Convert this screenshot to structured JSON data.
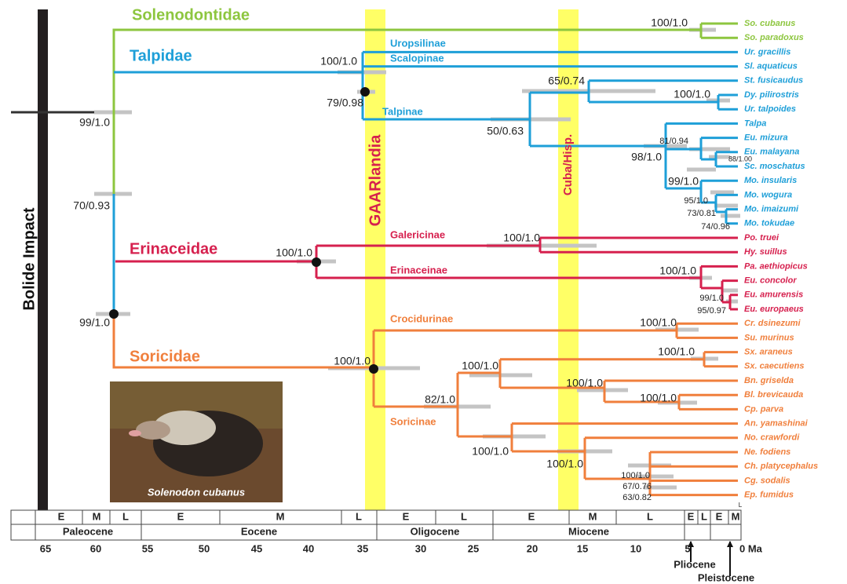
{
  "events": {
    "bolide": "Bolide Impact",
    "gaarlandia": "GAARlandia",
    "cuba": "Cuba/Hisp."
  },
  "families": [
    "Solenodontidae",
    "Talpidae",
    "Erinaceidae",
    "Soricidae"
  ],
  "subfamilies": [
    "Uropsilinae",
    "Scalopinae",
    "Talpinae",
    "Galericinae",
    "Erinaceinae",
    "Crocidurinae",
    "Soricinae"
  ],
  "taxa": [
    "So. cubanus",
    "So. paradoxus",
    "Ur. gracillis",
    "Sl. aquaticus",
    "St. fusicaudus",
    "Dy. pilirostris",
    "Ur. talpoides",
    "Talpa",
    "Eu. mizura",
    "Eu. malayana",
    "Sc. moschatus",
    "Mo. insularis",
    "Mo. wogura",
    "Mo. imaizumi",
    "Mo. tokudae",
    "Po. truei",
    "Hy. suillus",
    "Pa. aethiopicus",
    "Eu. concolor",
    "Eu. amurensis",
    "Eu. europaeus",
    "Cr. dsinezumi",
    "Su. murinus",
    "Sx. araneus",
    "Sx. caecutiens",
    "Bn. griselda",
    "Bl. brevicauda",
    "Cp. parva",
    "An. yamashinai",
    "No. crawfordi",
    "Ne. fodiens",
    "Ch. platycephalus",
    "Cg. sodalis",
    "Ep. fumidus"
  ],
  "support": [
    "100/1.0",
    "100/1.0",
    "79/0.98",
    "99/1.0",
    "70/0.93",
    "99/1.0",
    "65/0.74",
    "100/1.0",
    "50/0.63",
    "81/0.94",
    "98/1.0",
    "88/1.00",
    "99/1.0",
    "95/1.0",
    "73/0.81",
    "74/0.96",
    "100/1.0",
    "100/1.0",
    "100/1.0",
    "99/1.0",
    "95/0.97",
    "100/1.0",
    "100/1.0",
    "100/1.0",
    "100/1.0",
    "100/1.0",
    "100/1.0",
    "82/1.0",
    "100/1.0",
    "100/1.0",
    "100/1.0",
    "67/0.76",
    "63/0.82"
  ],
  "photo_caption": "Solenodon cubanus",
  "timescale": {
    "subepochs": [
      "E",
      "M",
      "L",
      "E",
      "M",
      "L",
      "E",
      "L",
      "E",
      "M",
      "L",
      "E",
      "L",
      "E",
      "M"
    ],
    "corner": "L",
    "epochs": [
      "Paleocene",
      "Eocene",
      "Oligocene",
      "Miocene"
    ],
    "ticks": [
      "65",
      "60",
      "55",
      "50",
      "45",
      "40",
      "35",
      "30",
      "25",
      "20",
      "15",
      "10",
      "5",
      "0 Ma"
    ],
    "pliocene": "Pliocene",
    "pleistocene": "Pleistocene"
  }
}
